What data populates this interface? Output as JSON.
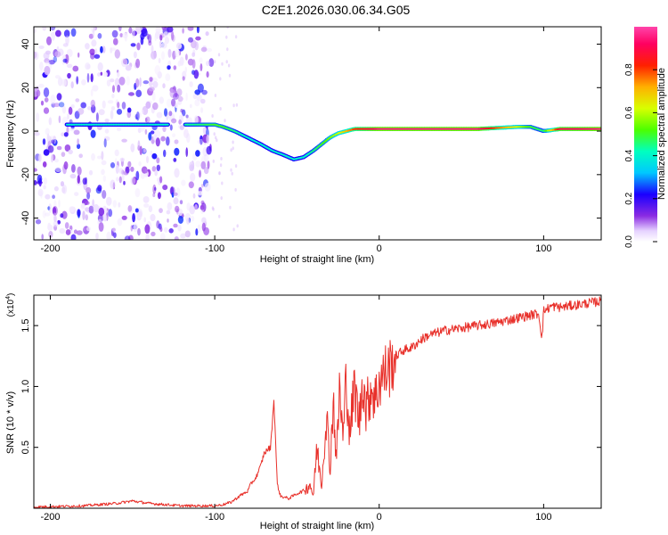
{
  "page_title": "C2E1.2026.030.06.34.G05",
  "chart_data": [
    {
      "type": "heatmap",
      "title": "C2E1.2026.030.06.34.G05",
      "xlabel": "Height of straight line (km)",
      "ylabel": "Frequency (Hz)",
      "xlim": [
        -210,
        135
      ],
      "ylim": [
        -50,
        48
      ],
      "x_ticks": [
        -200,
        -100,
        0,
        100
      ],
      "y_ticks": [
        -40,
        -20,
        0,
        20,
        40
      ],
      "x_tick_labels": [
        "-200",
        "-100",
        "0",
        "100"
      ],
      "y_tick_labels": [
        "-40",
        "-20",
        "0",
        "20",
        "40"
      ],
      "colorbar": {
        "label": "Normalized spectral amplitude",
        "range": [
          0.0,
          1.0
        ],
        "ticks": [
          0.0,
          0.2,
          0.4,
          0.6,
          0.8
        ],
        "tick_labels": [
          "0.0",
          "0.2",
          "0.4",
          "0.6",
          "0.8"
        ]
      },
      "ridge": {
        "x": [
          -190,
          -150,
          -135,
          -110,
          -100,
          -95,
          -88,
          -80,
          -72,
          -65,
          -58,
          -52,
          -46,
          -40,
          -35,
          -30,
          -25,
          -20,
          -15,
          -10,
          -5,
          0,
          10,
          30,
          60,
          85,
          92,
          100,
          110,
          135
        ],
        "y": [
          3,
          3,
          3,
          3,
          3,
          2,
          0,
          -3,
          -6,
          -9,
          -11,
          -13,
          -12,
          -9,
          -6,
          -3,
          -1,
          0,
          1,
          1,
          1,
          1,
          1,
          1,
          1,
          2,
          2,
          0,
          1,
          1
        ],
        "peak_amplitude": [
          0.4,
          0.4,
          0.4,
          0.45,
          0.5,
          0.5,
          0.45,
          0.4,
          0.4,
          0.4,
          0.4,
          0.4,
          0.4,
          0.45,
          0.5,
          0.55,
          0.6,
          0.7,
          0.8,
          0.85,
          0.9,
          0.95,
          0.95,
          0.95,
          0.95,
          0.6,
          0.5,
          0.45,
          0.9,
          0.95
        ]
      },
      "noise_region": {
        "x_range": [
          -210,
          -102
        ],
        "y_range": [
          -50,
          48
        ],
        "amplitude_range": [
          0.02,
          0.25
        ]
      }
    },
    {
      "type": "line",
      "xlabel": "Height of straight line (km)",
      "ylabel": "SNR (10 * v/v)",
      "y_scale_label": "(x10",
      "y_scale_exponent": "4",
      "y_multiplier": 10000,
      "xlim": [
        -210,
        135
      ],
      "ylim": [
        0,
        1.75
      ],
      "x_ticks": [
        -200,
        -100,
        0,
        100
      ],
      "y_ticks": [
        0.5,
        1.0,
        1.5
      ],
      "x_tick_labels": [
        "-200",
        "-100",
        "0",
        "100"
      ],
      "y_tick_labels": [
        "0.5",
        "1.0",
        "1.5"
      ],
      "color": "#e8302a",
      "series": [
        {
          "x": [
            -210,
            -180,
            -160,
            -150,
            -140,
            -120,
            -105,
            -100,
            -95,
            -90,
            -85,
            -80,
            -78,
            -75,
            -72,
            -70,
            -68,
            -66,
            -64,
            -62,
            -60,
            -55,
            -50,
            -45,
            -42,
            -40,
            -38,
            -35,
            -32,
            -30,
            -28,
            -26,
            -24,
            -22,
            -20,
            -18,
            -15,
            -12,
            -10,
            -8,
            -5,
            -2,
            0,
            3,
            6,
            10,
            15,
            20,
            25,
            30,
            40,
            50,
            60,
            70,
            80,
            90,
            97,
            99,
            100,
            105,
            110,
            120,
            135
          ],
          "y": [
            0.01,
            0.02,
            0.04,
            0.06,
            0.04,
            0.02,
            0.02,
            0.02,
            0.03,
            0.05,
            0.1,
            0.14,
            0.2,
            0.25,
            0.35,
            0.45,
            0.48,
            0.5,
            0.9,
            0.2,
            0.1,
            0.08,
            0.12,
            0.15,
            0.2,
            0.1,
            0.5,
            0.2,
            0.8,
            0.3,
            0.9,
            0.4,
            1.0,
            0.55,
            1.1,
            0.6,
            1.0,
            0.7,
            1.1,
            0.8,
            1.0,
            0.9,
            1.05,
            1.1,
            1.15,
            1.25,
            1.3,
            1.32,
            1.38,
            1.42,
            1.46,
            1.48,
            1.5,
            1.52,
            1.55,
            1.58,
            1.6,
            1.4,
            1.62,
            1.66,
            1.65,
            1.67,
            1.7
          ]
        }
      ]
    }
  ]
}
